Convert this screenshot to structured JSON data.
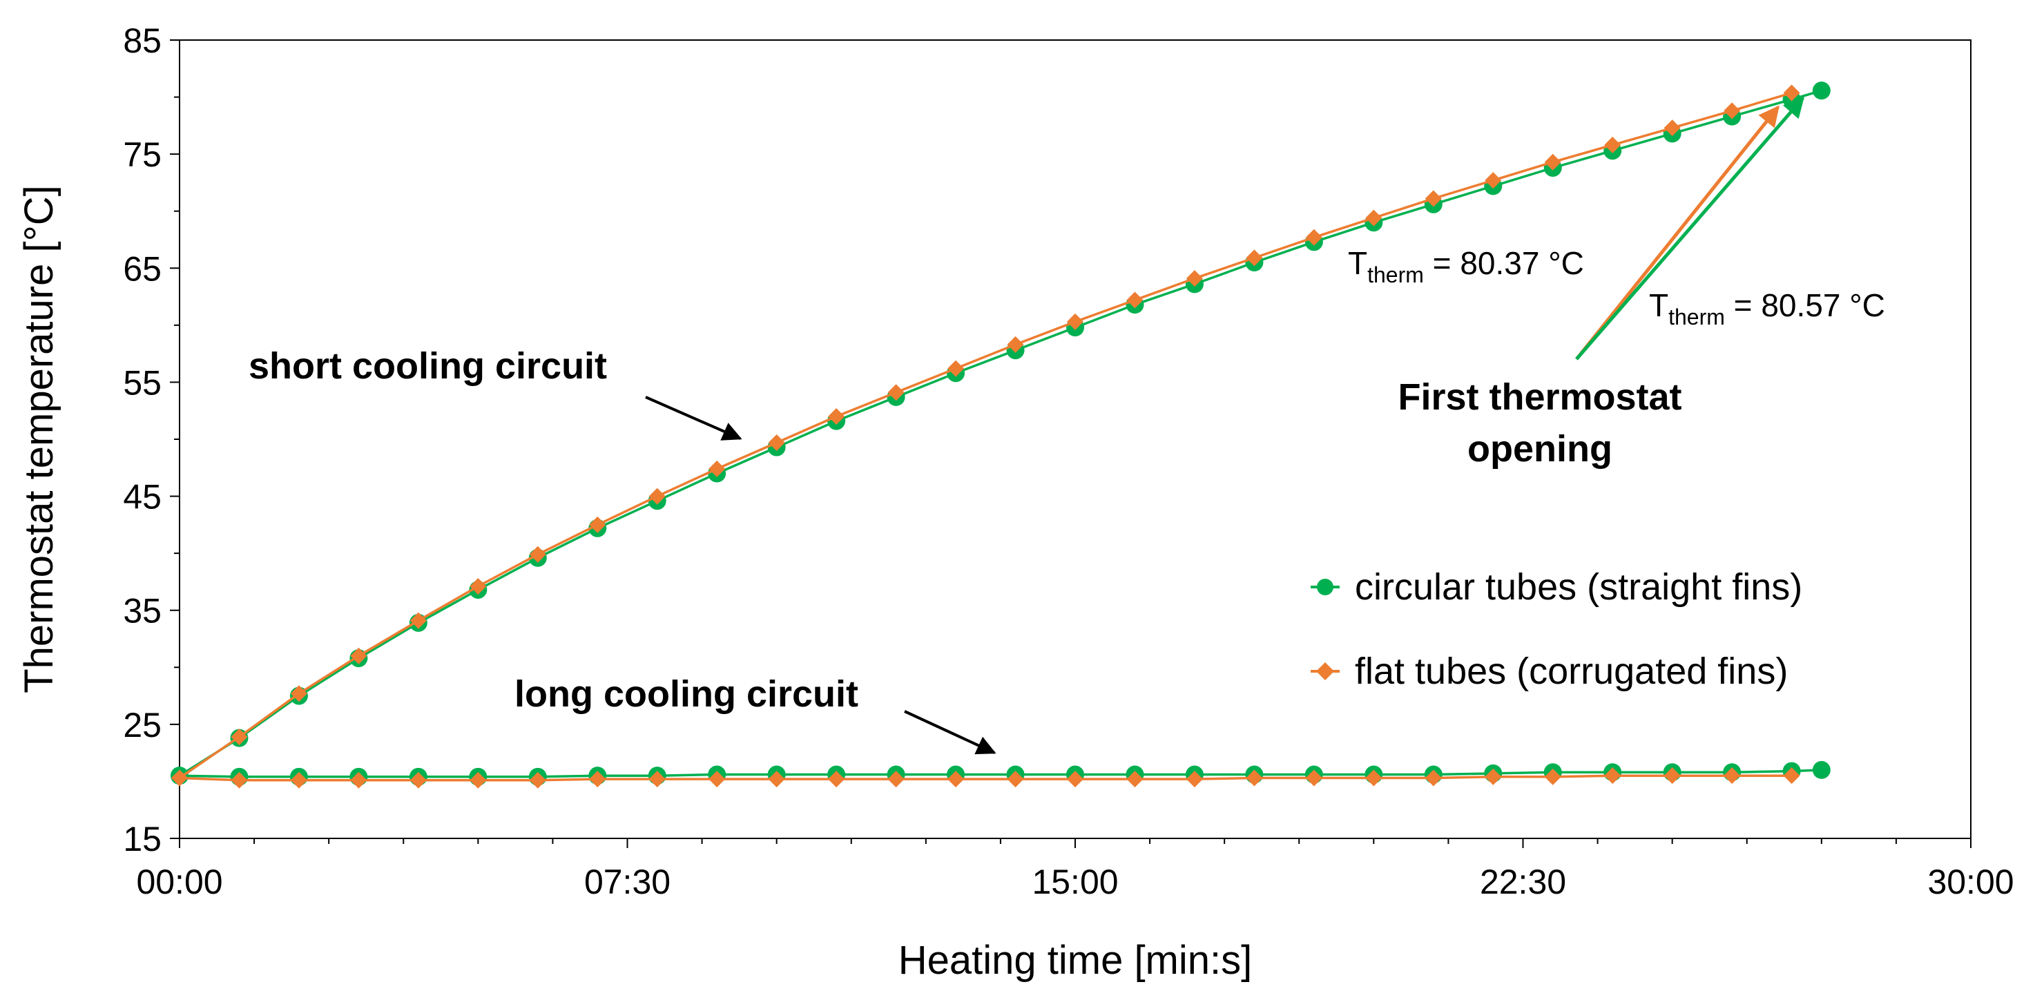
{
  "chart_data": {
    "type": "line",
    "title": "",
    "xlabel": "Heating time [min:s]",
    "ylabel": "Thermostat temperature [°C]",
    "xlim": [
      0,
      30
    ],
    "ylim": [
      15,
      85
    ],
    "x_ticks": [
      0,
      7.5,
      15,
      22.5,
      30
    ],
    "x_tick_labels": [
      "00:00",
      "07:30",
      "15:00",
      "22:30",
      "30:00"
    ],
    "y_ticks": [
      15,
      25,
      35,
      45,
      55,
      65,
      75,
      85
    ],
    "y_tick_labels": [
      "15",
      "25",
      "35",
      "45",
      "55",
      "65",
      "75",
      "85"
    ],
    "grid": false,
    "legend_position": "right",
    "series": [
      {
        "name": "circular tubes (straight fins)",
        "color": "#00b050",
        "marker": "circle",
        "circuit": "short",
        "x": [
          0,
          1,
          2,
          3,
          4,
          5,
          6,
          7,
          8,
          9,
          10,
          11,
          12,
          13,
          14,
          15,
          16,
          17,
          18,
          19,
          20,
          21,
          22,
          23,
          24,
          25,
          26,
          27,
          27.5
        ],
        "values": [
          20.5,
          23.8,
          27.5,
          30.8,
          33.9,
          36.8,
          39.6,
          42.2,
          44.6,
          47.0,
          49.3,
          51.6,
          53.7,
          55.8,
          57.8,
          59.8,
          61.8,
          63.6,
          65.5,
          67.3,
          69.0,
          70.6,
          72.2,
          73.8,
          75.3,
          76.8,
          78.3,
          79.8,
          80.57
        ]
      },
      {
        "name": "flat tubes (corrugated fins)",
        "color": "#ed7d31",
        "marker": "diamond",
        "circuit": "short",
        "x": [
          0,
          1,
          2,
          3,
          4,
          5,
          6,
          7,
          8,
          9,
          10,
          11,
          12,
          13,
          14,
          15,
          16,
          17,
          18,
          19,
          20,
          21,
          22,
          23,
          24,
          25,
          26,
          27
        ],
        "values": [
          20.3,
          23.9,
          27.7,
          31.0,
          34.1,
          37.1,
          39.9,
          42.5,
          45.0,
          47.4,
          49.7,
          52.0,
          54.1,
          56.2,
          58.3,
          60.3,
          62.2,
          64.1,
          65.9,
          67.7,
          69.4,
          71.1,
          72.7,
          74.3,
          75.8,
          77.3,
          78.8,
          80.37
        ]
      },
      {
        "name": "circular tubes (straight fins)",
        "color": "#00b050",
        "marker": "circle",
        "circuit": "long",
        "x": [
          0,
          1,
          2,
          3,
          4,
          5,
          6,
          7,
          8,
          9,
          10,
          11,
          12,
          13,
          14,
          15,
          16,
          17,
          18,
          19,
          20,
          21,
          22,
          23,
          24,
          25,
          26,
          27,
          27.5
        ],
        "values": [
          20.5,
          20.4,
          20.4,
          20.4,
          20.4,
          20.4,
          20.4,
          20.5,
          20.5,
          20.6,
          20.6,
          20.6,
          20.6,
          20.6,
          20.6,
          20.6,
          20.6,
          20.6,
          20.6,
          20.6,
          20.6,
          20.6,
          20.7,
          20.8,
          20.8,
          20.8,
          20.8,
          20.9,
          21.0
        ]
      },
      {
        "name": "flat tubes (corrugated fins)",
        "color": "#ed7d31",
        "marker": "diamond",
        "circuit": "long",
        "x": [
          0,
          1,
          2,
          3,
          4,
          5,
          6,
          7,
          8,
          9,
          10,
          11,
          12,
          13,
          14,
          15,
          16,
          17,
          18,
          19,
          20,
          21,
          22,
          23,
          24,
          25,
          26,
          27
        ],
        "values": [
          20.3,
          20.1,
          20.1,
          20.1,
          20.1,
          20.1,
          20.1,
          20.2,
          20.2,
          20.2,
          20.2,
          20.2,
          20.2,
          20.2,
          20.2,
          20.2,
          20.2,
          20.2,
          20.3,
          20.3,
          20.3,
          20.3,
          20.4,
          20.4,
          20.5,
          20.5,
          20.5,
          20.5
        ]
      }
    ],
    "legend": [
      {
        "label": "circular tubes (straight fins)",
        "color": "#00b050",
        "marker": "circle"
      },
      {
        "label": "flat tubes (corrugated fins)",
        "color": "#ed7d31",
        "marker": "diamond"
      }
    ],
    "annotations": {
      "short_circuit": "short cooling circuit",
      "long_circuit": "long cooling circuit",
      "thermostat_line1": "First thermostat",
      "thermostat_line2": "opening",
      "t_therm_flat": {
        "symbol": "T",
        "subscript": "therm",
        "value": " = 80.37 °C"
      },
      "t_therm_circular": {
        "symbol": "T",
        "subscript": "therm",
        "value": " = 80.57 °C"
      }
    }
  }
}
